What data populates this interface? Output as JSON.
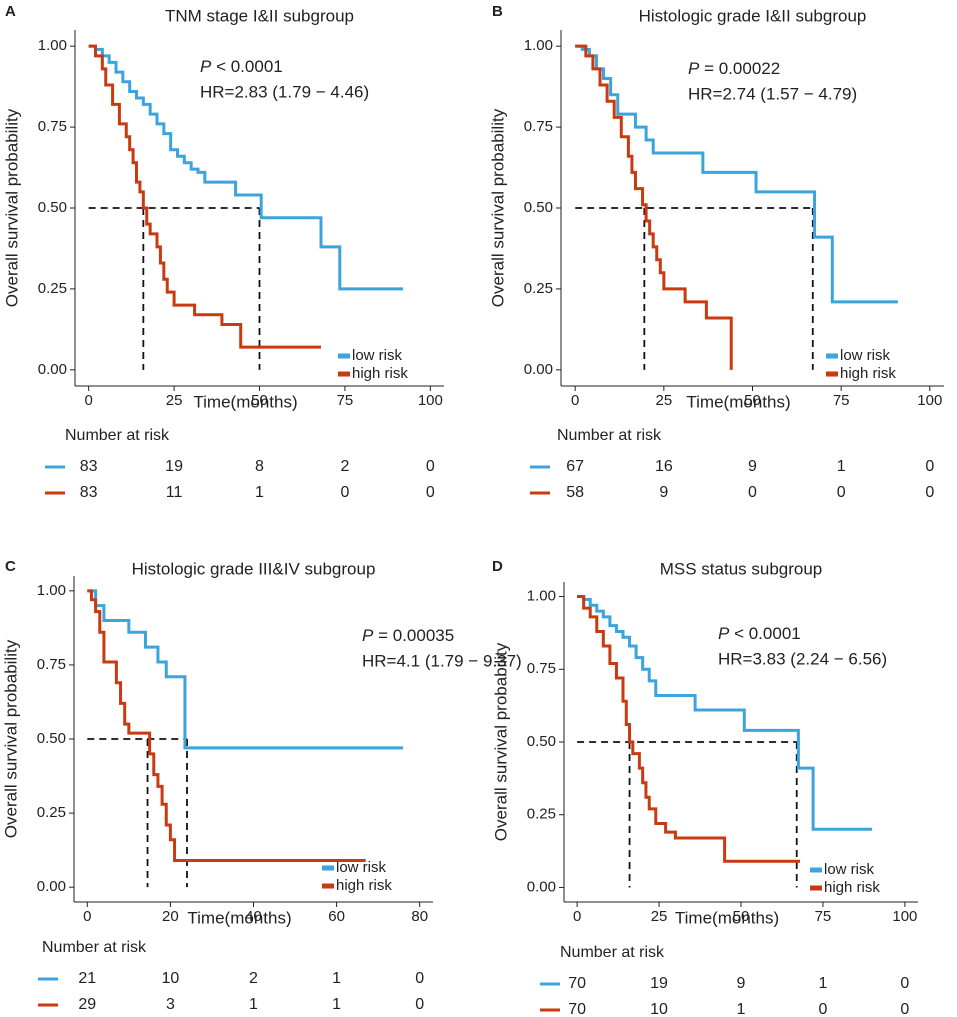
{
  "chart_data": [
    {
      "type": "line",
      "panel": "A",
      "title": "TNM stage I&II subgroup",
      "p_symbol": "P",
      "p_text": "< 0.0001",
      "hr_text": "HR=2.83 (1.79 − 4.46)",
      "x_label": "Time(months)",
      "y_label": "Overall survival probability",
      "risk_title": "Number at risk",
      "xlim": [
        -4,
        104
      ],
      "ylim": [
        -0.05,
        1.05
      ],
      "xticks": [
        0,
        25,
        50,
        75,
        100
      ],
      "yticks": [
        {
          "value": 0,
          "label": "0.00"
        },
        {
          "value": 0.25,
          "label": "0.25"
        },
        {
          "value": 0.5,
          "label": "0.50"
        },
        {
          "value": 0.75,
          "label": "0.75"
        },
        {
          "value": 1,
          "label": "1.00"
        }
      ],
      "median_survival": 0.5,
      "medians": [
        50,
        16
      ],
      "legend": "lower right",
      "series": [
        {
          "name": "low risk",
          "color": "#3ba3de",
          "x": [
            0,
            2,
            4,
            6,
            8,
            10,
            12,
            14,
            16,
            18,
            20,
            22,
            24,
            26,
            28,
            30,
            32,
            34,
            43,
            50.5,
            68,
            73.5,
            92
          ],
          "values": [
            1,
            0.99,
            0.97,
            0.95,
            0.92,
            0.89,
            0.86,
            0.84,
            0.82,
            0.79,
            0.76,
            0.73,
            0.68,
            0.66,
            0.64,
            0.62,
            0.61,
            0.58,
            0.54,
            0.47,
            0.38,
            0.25,
            0.25
          ],
          "at_risk": [
            83,
            19,
            8,
            2,
            0
          ]
        },
        {
          "name": "high risk",
          "color": "#c93a10",
          "x": [
            0,
            2,
            4,
            5,
            7,
            9,
            11,
            12,
            13,
            14,
            15,
            16,
            17,
            18,
            20,
            21,
            22,
            23,
            25,
            31,
            39,
            44.5,
            68
          ],
          "values": [
            1,
            0.97,
            0.93,
            0.88,
            0.82,
            0.76,
            0.72,
            0.68,
            0.64,
            0.58,
            0.55,
            0.5,
            0.45,
            0.42,
            0.38,
            0.33,
            0.28,
            0.24,
            0.2,
            0.17,
            0.14,
            0.07,
            0.07
          ],
          "at_risk": [
            83,
            11,
            1,
            0,
            0
          ]
        }
      ]
    },
    {
      "type": "line",
      "panel": "B",
      "title": "Histologic grade I&II subgroup",
      "p_symbol": "P",
      "p_text": "= 0.00022",
      "hr_text": "HR=2.74 (1.57 − 4.79)",
      "x_label": "Time(months)",
      "y_label": "Overall survival probability",
      "risk_title": "Number at risk",
      "xlim": [
        -4,
        104
      ],
      "ylim": [
        -0.05,
        1.05
      ],
      "xticks": [
        0,
        25,
        50,
        75,
        100
      ],
      "yticks": [
        {
          "value": 0,
          "label": "0.00"
        },
        {
          "value": 0.25,
          "label": "0.25"
        },
        {
          "value": 0.5,
          "label": "0.50"
        },
        {
          "value": 0.75,
          "label": "0.75"
        },
        {
          "value": 1,
          "label": "1.00"
        }
      ],
      "median_survival": 0.5,
      "medians": [
        67,
        19.5
      ],
      "legend": "lower right",
      "series": [
        {
          "name": "low risk",
          "color": "#3ba3de",
          "x": [
            0,
            2,
            4,
            6,
            8,
            10,
            12,
            17,
            20,
            22,
            36,
            51,
            67.5,
            72.5,
            91
          ],
          "values": [
            1,
            0.99,
            0.97,
            0.93,
            0.9,
            0.85,
            0.79,
            0.75,
            0.71,
            0.67,
            0.61,
            0.55,
            0.41,
            0.21,
            0.21
          ],
          "at_risk": [
            67,
            16,
            9,
            1,
            0
          ]
        },
        {
          "name": "high risk",
          "color": "#c93a10",
          "x": [
            0,
            3,
            5,
            7,
            9,
            11,
            13,
            15,
            16,
            17,
            19,
            20,
            21,
            22,
            23,
            24,
            25,
            31,
            37,
            44
          ],
          "values": [
            1,
            0.97,
            0.93,
            0.88,
            0.83,
            0.78,
            0.72,
            0.66,
            0.61,
            0.56,
            0.51,
            0.46,
            0.42,
            0.38,
            0.34,
            0.3,
            0.25,
            0.21,
            0.16,
            0
          ],
          "at_risk": [
            58,
            9,
            0,
            0,
            0
          ]
        }
      ]
    },
    {
      "type": "line",
      "panel": "C",
      "title": "Histologic grade III&IV subgroup",
      "p_symbol": "P",
      "p_text": "= 0.00035",
      "hr_text": "HR=4.1 (1.79 − 9.37)",
      "x_label": "Time(months)",
      "y_label": "Overall survival probability",
      "risk_title": "Number at risk",
      "xlim": [
        -3.2,
        83.2
      ],
      "ylim": [
        -0.05,
        1.05
      ],
      "xticks": [
        0,
        20,
        40,
        60,
        80
      ],
      "yticks": [
        {
          "value": 0,
          "label": "0.00"
        },
        {
          "value": 0.25,
          "label": "0.25"
        },
        {
          "value": 0.5,
          "label": "0.50"
        },
        {
          "value": 0.75,
          "label": "0.75"
        },
        {
          "value": 1,
          "label": "1.00"
        }
      ],
      "median_survival": 0.5,
      "medians": [
        24,
        14.5
      ],
      "legend": "lower right",
      "series": [
        {
          "name": "low risk",
          "color": "#3ba3de",
          "x": [
            0,
            2,
            4,
            10,
            14,
            17,
            19,
            23.5,
            76
          ],
          "values": [
            1,
            0.95,
            0.9,
            0.86,
            0.81,
            0.76,
            0.71,
            0.47,
            0.47
          ],
          "at_risk": [
            21,
            10,
            2,
            1,
            0
          ]
        },
        {
          "name": "high risk",
          "color": "#c93a10",
          "x": [
            0,
            1,
            2,
            3,
            4,
            7,
            8,
            9,
            10,
            15,
            16,
            17,
            18,
            19,
            20,
            21,
            67
          ],
          "values": [
            1,
            0.97,
            0.93,
            0.86,
            0.76,
            0.69,
            0.62,
            0.55,
            0.52,
            0.45,
            0.38,
            0.34,
            0.28,
            0.21,
            0.16,
            0.09,
            0.09
          ],
          "at_risk": [
            29,
            3,
            1,
            1,
            0
          ]
        }
      ]
    },
    {
      "type": "line",
      "panel": "D",
      "title": "MSS status subgroup",
      "p_symbol": "P",
      "p_text": "< 0.0001",
      "hr_text": "HR=3.83 (2.24 − 6.56)",
      "x_label": "Time(months)",
      "y_label": "Overall survival probability",
      "risk_title": "Number at risk",
      "xlim": [
        -4,
        104
      ],
      "ylim": [
        -0.05,
        1.05
      ],
      "xticks": [
        0,
        25,
        50,
        75,
        100
      ],
      "yticks": [
        {
          "value": 0,
          "label": "0.00"
        },
        {
          "value": 0.25,
          "label": "0.25"
        },
        {
          "value": 0.5,
          "label": "0.50"
        },
        {
          "value": 0.75,
          "label": "0.75"
        },
        {
          "value": 1,
          "label": "1.00"
        }
      ],
      "median_survival": 0.5,
      "medians": [
        67,
        16
      ],
      "legend": "lower right",
      "series": [
        {
          "name": "low risk",
          "color": "#3ba3de",
          "x": [
            0,
            2,
            4,
            6,
            8,
            10,
            12,
            14,
            16,
            18,
            20,
            22,
            24,
            36,
            51,
            67.5,
            72,
            90
          ],
          "values": [
            1,
            0.99,
            0.97,
            0.95,
            0.93,
            0.9,
            0.88,
            0.86,
            0.83,
            0.79,
            0.75,
            0.71,
            0.66,
            0.61,
            0.54,
            0.41,
            0.2,
            0.2
          ],
          "at_risk": [
            70,
            19,
            9,
            1,
            0
          ]
        },
        {
          "name": "high risk",
          "color": "#c93a10",
          "x": [
            0,
            2,
            4,
            6,
            8,
            10,
            12,
            14,
            15,
            16,
            17,
            19,
            20,
            21,
            22,
            24,
            27,
            30,
            45,
            68
          ],
          "values": [
            1,
            0.96,
            0.93,
            0.88,
            0.83,
            0.77,
            0.72,
            0.64,
            0.56,
            0.5,
            0.46,
            0.41,
            0.36,
            0.31,
            0.27,
            0.22,
            0.19,
            0.17,
            0.09,
            0.09
          ],
          "at_risk": [
            70,
            10,
            1,
            0,
            0
          ]
        }
      ]
    }
  ]
}
